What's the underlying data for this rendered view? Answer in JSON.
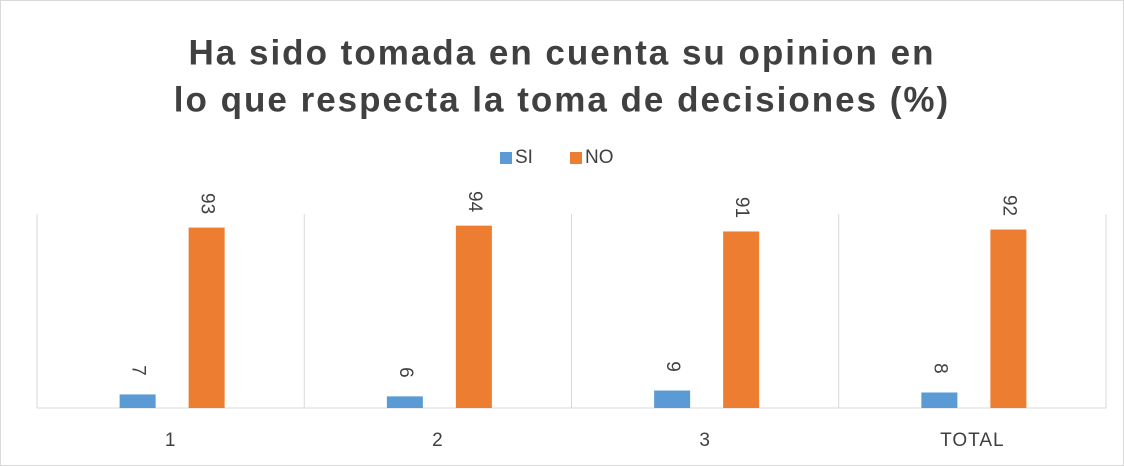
{
  "chart_data": {
    "type": "bar",
    "title": [
      "Ha sido tomada en cuenta su opinion en",
      "lo que respecta la toma de decisiones (%)"
    ],
    "categories": [
      "1",
      "2",
      "3",
      "TOTAL"
    ],
    "series": [
      {
        "name": "SI",
        "color": "#5b9bd5",
        "values": [
          7,
          6,
          9,
          8
        ]
      },
      {
        "name": "NO",
        "color": "#ed7d31",
        "values": [
          93,
          94,
          91,
          92
        ]
      }
    ],
    "ylim": [
      0,
      100
    ],
    "legend": "top"
  }
}
